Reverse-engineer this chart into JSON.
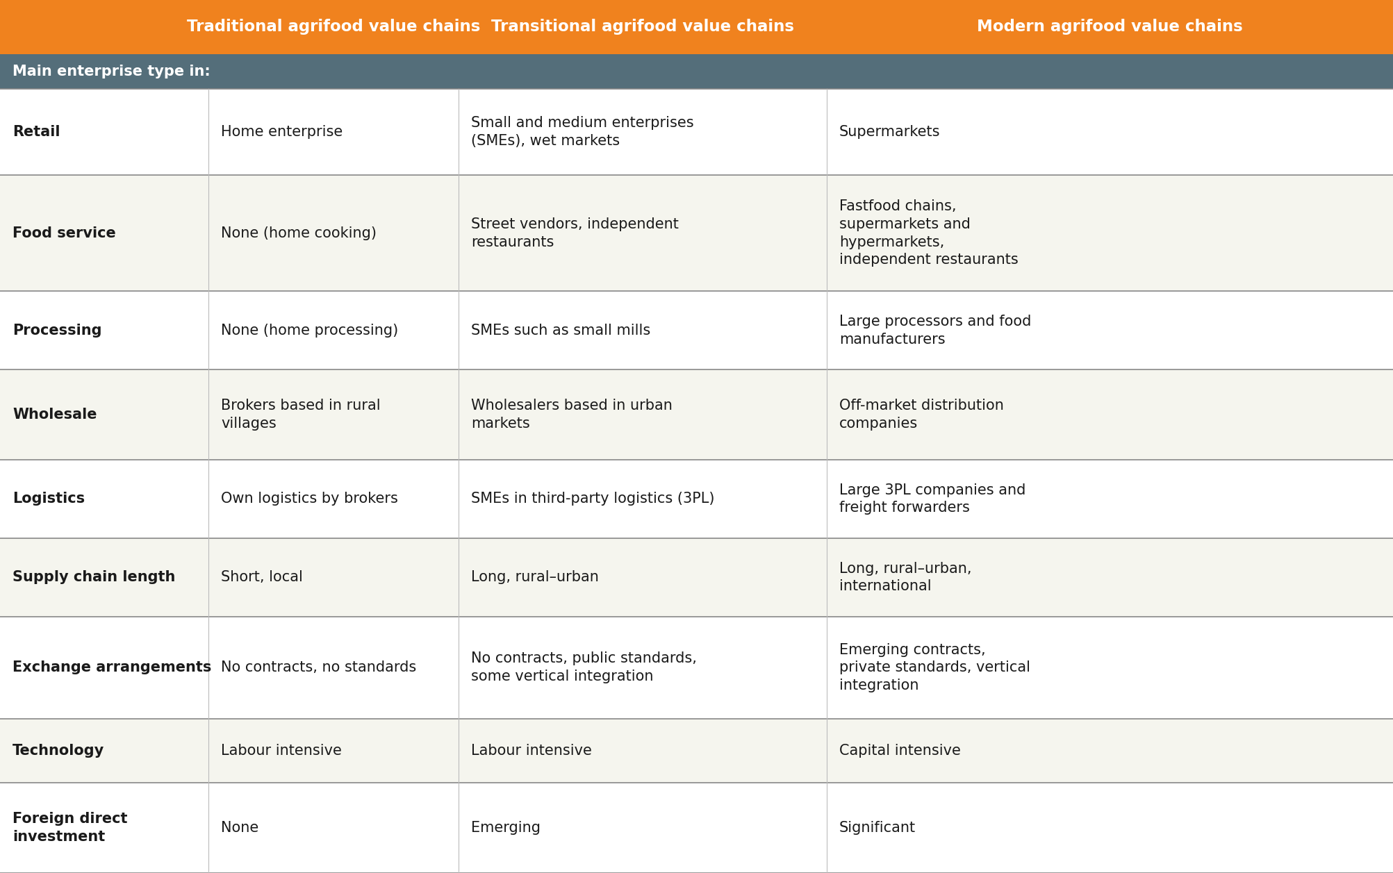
{
  "header_bg": "#F0821E",
  "subheader_bg": "#546E7A",
  "row_bg_white": "#FFFFFF",
  "row_bg_light": "#F5F5EE",
  "header_text_color": "#FFFFFF",
  "subheader_text_color": "#FFFFFF",
  "body_text_color": "#1A1A1A",
  "border_color": "#999999",
  "col_headers": [
    "Traditional agrifood value chains",
    "Transitional agrifood value chains",
    "Modern agrifood value chains"
  ],
  "subheader": "Main enterprise type in:",
  "rows": [
    {
      "label": "Retail",
      "traditional": "Home enterprise",
      "transitional": "Small and medium enterprises\n(SMEs), wet markets",
      "modern": "Supermarkets"
    },
    {
      "label": "Food service",
      "traditional": "None (home cooking)",
      "transitional": "Street vendors, independent\nrestaurants",
      "modern": "Fastfood chains,\nsupermarkets and\nhypermarkets,\nindependent restaurants"
    },
    {
      "label": "Processing",
      "traditional": "None (home processing)",
      "transitional": "SMEs such as small mills",
      "modern": "Large processors and food\nmanufacturers"
    },
    {
      "label": "Wholesale",
      "traditional": "Brokers based in rural\nvillages",
      "transitional": "Wholesalers based in urban\nmarkets",
      "modern": "Off-market distribution\ncompanies"
    },
    {
      "label": "Logistics",
      "traditional": "Own logistics by brokers",
      "transitional": "SMEs in third-party logistics (3PL)",
      "modern": "Large 3PL companies and\nfreight forwarders"
    },
    {
      "label": "Supply chain length",
      "traditional": "Short, local",
      "transitional": "Long, rural–urban",
      "modern": "Long, rural–urban,\ninternational"
    },
    {
      "label": "Exchange arrangements",
      "traditional": "No contracts, no standards",
      "transitional": "No contracts, public standards,\nsome vertical integration",
      "modern": "Emerging contracts,\nprivate standards, vertical\nintegration"
    },
    {
      "label": "Technology",
      "traditional": "Labour intensive",
      "transitional": "Labour intensive",
      "modern": "Capital intensive"
    },
    {
      "label": "Foreign direct\ninvestment",
      "traditional": "None",
      "transitional": "Emerging",
      "modern": "Significant"
    }
  ]
}
